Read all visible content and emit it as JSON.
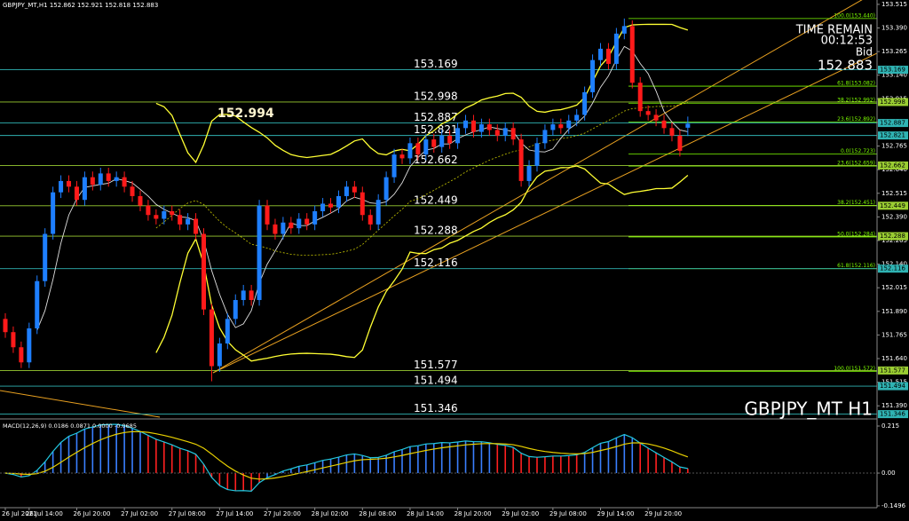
{
  "chart_data": {
    "type": "candlestick",
    "title": "GBPJPY_MT,H1  152.862 152.921 152.818 152.883",
    "annotation": "152.994",
    "timer_label": "TIME REMAIN",
    "timer": "00:12:53",
    "bid_label": "Bid",
    "bid": "152.883",
    "symbol_label": "GBPJPY_MT H1",
    "bull_color": "#1e7fff",
    "bear_color": "#ff1a1a",
    "ylim": [
      151.33,
      153.538
    ],
    "yticks": [
      153.515,
      {
        "value": 153.39,
        "label": "153.390"
      },
      153.265,
      {
        "value": 153.14,
        "label": "153.140"
      },
      153.015,
      {
        "value": 152.89,
        "label": "152.890"
      },
      152.765,
      {
        "value": 152.64,
        "label": "152.640"
      },
      152.515,
      {
        "value": 152.39,
        "label": "152.390"
      },
      152.265,
      {
        "value": 152.14,
        "label": "152.140"
      },
      152.015,
      {
        "value": 151.89,
        "label": "151.890"
      },
      151.765,
      {
        "value": 151.64,
        "label": "151.640"
      },
      151.515,
      {
        "value": 151.39,
        "label": "151.390"
      }
    ],
    "categories": [
      "26 Jul 2021",
      null,
      null,
      "26 Jul 14:00",
      null,
      null,
      null,
      null,
      null,
      "26 Jul 20:00",
      null,
      null,
      null,
      null,
      null,
      "27 Jul 02:00",
      null,
      null,
      null,
      null,
      null,
      "27 Jul 08:00",
      null,
      null,
      null,
      null,
      null,
      "27 Jul 14:00",
      null,
      null,
      null,
      null,
      null,
      "27 Jul 20:00",
      null,
      null,
      null,
      null,
      null,
      "28 Jul 02:00",
      null,
      null,
      null,
      null,
      null,
      "28 Jul 08:00",
      null,
      null,
      null,
      null,
      null,
      "28 Jul 14:00",
      null,
      null,
      null,
      null,
      null,
      "28 Jul 20:00",
      null,
      null,
      null,
      null,
      null,
      "29 Jul 02:00",
      null,
      null,
      null,
      null,
      null,
      "29 Jul 08:00",
      null,
      null,
      null,
      null,
      null,
      "29 Jul 14:00",
      null,
      null,
      null,
      null,
      null,
      "29 Jul 20:00",
      null,
      null,
      null,
      null,
      null
    ],
    "open": [
      151.85,
      151.78,
      151.7,
      151.62,
      151.8,
      152.05,
      152.3,
      152.52,
      152.58,
      152.55,
      152.48,
      152.6,
      152.56,
      152.62,
      152.58,
      152.6,
      152.55,
      152.5,
      152.45,
      152.4,
      152.38,
      152.42,
      152.4,
      152.35,
      152.38,
      152.3,
      151.9,
      151.6,
      151.72,
      151.85,
      151.95,
      152.0,
      151.95,
      152.45,
      152.35,
      152.3,
      152.36,
      152.33,
      152.38,
      152.35,
      152.42,
      152.46,
      152.44,
      152.5,
      152.55,
      152.52,
      152.4,
      152.35,
      152.48,
      152.6,
      152.72,
      152.7,
      152.78,
      152.72,
      152.8,
      152.76,
      152.82,
      152.78,
      152.86,
      152.9,
      152.84,
      152.88,
      152.85,
      152.82,
      152.86,
      152.8,
      152.58,
      152.66,
      152.78,
      152.85,
      152.88,
      152.86,
      152.9,
      152.93,
      153.05,
      153.22,
      153.28,
      153.2,
      153.36,
      153.4,
      153.1,
      152.95,
      152.93,
      152.9,
      152.86,
      152.82,
      152.862
    ],
    "high": [
      151.88,
      151.81,
      151.73,
      151.83,
      152.08,
      152.33,
      152.55,
      152.61,
      152.61,
      152.58,
      152.63,
      152.63,
      152.65,
      152.65,
      152.63,
      152.63,
      152.58,
      152.53,
      152.48,
      152.43,
      152.45,
      152.45,
      152.43,
      152.41,
      152.41,
      152.33,
      151.93,
      151.75,
      151.88,
      151.98,
      152.03,
      152.03,
      152.48,
      152.48,
      152.38,
      152.39,
      152.39,
      152.41,
      152.41,
      152.45,
      152.49,
      152.49,
      152.53,
      152.58,
      152.58,
      152.55,
      152.43,
      152.51,
      152.63,
      152.75,
      152.75,
      152.81,
      152.81,
      152.83,
      152.83,
      152.85,
      152.85,
      152.89,
      152.93,
      152.93,
      152.91,
      152.91,
      152.88,
      152.89,
      152.89,
      152.83,
      152.69,
      152.81,
      152.88,
      152.91,
      152.91,
      152.93,
      152.96,
      153.08,
      153.25,
      153.31,
      153.31,
      153.39,
      153.44,
      153.43,
      153.13,
      152.98,
      152.96,
      152.93,
      152.89,
      152.85,
      152.921
    ],
    "low": [
      151.75,
      151.67,
      151.59,
      151.59,
      151.77,
      152.02,
      152.27,
      152.49,
      152.52,
      152.45,
      152.45,
      152.53,
      152.53,
      152.55,
      152.55,
      152.52,
      152.47,
      152.42,
      152.37,
      152.35,
      152.35,
      152.37,
      152.32,
      152.32,
      152.27,
      151.87,
      151.52,
      151.57,
      151.69,
      151.82,
      151.92,
      151.92,
      151.92,
      152.32,
      152.27,
      152.27,
      152.3,
      152.3,
      152.32,
      152.32,
      152.39,
      152.41,
      152.41,
      152.47,
      152.49,
      152.37,
      152.32,
      152.32,
      152.45,
      152.57,
      152.67,
      152.67,
      152.69,
      152.69,
      152.73,
      152.73,
      152.75,
      152.75,
      152.83,
      152.81,
      152.81,
      152.82,
      152.79,
      152.79,
      152.77,
      152.55,
      152.55,
      152.63,
      152.75,
      152.82,
      152.83,
      152.83,
      152.87,
      152.9,
      153.02,
      153.19,
      153.17,
      153.17,
      153.33,
      153.07,
      152.92,
      152.9,
      152.87,
      152.83,
      152.79,
      152.71,
      152.818
    ],
    "close": [
      151.78,
      151.7,
      151.62,
      151.8,
      152.05,
      152.3,
      152.52,
      152.58,
      152.55,
      152.48,
      152.6,
      152.56,
      152.62,
      152.58,
      152.6,
      152.55,
      152.5,
      152.45,
      152.4,
      152.38,
      152.42,
      152.4,
      152.35,
      152.38,
      152.3,
      151.9,
      151.6,
      151.72,
      151.85,
      151.95,
      152.0,
      151.95,
      152.45,
      152.35,
      152.3,
      152.36,
      152.33,
      152.38,
      152.35,
      152.42,
      152.46,
      152.44,
      152.5,
      152.55,
      152.52,
      152.4,
      152.35,
      152.48,
      152.6,
      152.72,
      152.7,
      152.78,
      152.72,
      152.8,
      152.76,
      152.82,
      152.78,
      152.86,
      152.9,
      152.84,
      152.88,
      152.85,
      152.82,
      152.86,
      152.8,
      152.58,
      152.66,
      152.78,
      152.85,
      152.88,
      152.86,
      152.9,
      152.93,
      153.05,
      153.22,
      153.28,
      153.2,
      153.36,
      153.4,
      153.1,
      152.95,
      152.93,
      152.9,
      152.86,
      152.82,
      152.74,
      152.883
    ],
    "levels": [
      153.169,
      152.998,
      152.887,
      152.821,
      152.662,
      152.449,
      152.288,
      152.116,
      151.577,
      151.494,
      151.346
    ],
    "level_colors": [
      "#2fb3b3",
      "#9acd32",
      "#2fb3b3",
      "#2fb3b3",
      "#9acd32",
      "#9acd32",
      "#9acd32",
      "#2fb3b3",
      "#9acd32",
      "#2fb3b3",
      "#2fb3b3"
    ],
    "fibo_color": "#7cfc00",
    "fibo_levels": [
      {
        "value": 153.44,
        "label": "100.0(153.440)"
      },
      {
        "value": 153.082,
        "label": "61.8(153.082)"
      },
      {
        "value": 152.992,
        "label": "38.2(152.992)"
      },
      {
        "value": 152.892,
        "label": "23.6(152.892)"
      },
      {
        "value": 152.723,
        "label": "0.0(152.723)"
      },
      {
        "value": 152.659,
        "label": "23.6(152.659)"
      },
      {
        "value": 152.451,
        "label": "38.2(152.451)"
      },
      {
        "value": 152.284,
        "label": "50.0(152.284)"
      },
      {
        "value": 152.116,
        "label": "61.8(152.116)"
      },
      {
        "value": 151.572,
        "label": "100.0(151.572)"
      }
    ],
    "macd_label": "MACD(12,26,9) 0.0186 0.0871 0.0000 -0.0685",
    "macd_ylim": [
      -0.158,
      0.2434
    ],
    "macd_yticks": [
      0.215,
      {
        "value": 0,
        "label": "0.00"
      },
      -0.1496
    ]
  }
}
